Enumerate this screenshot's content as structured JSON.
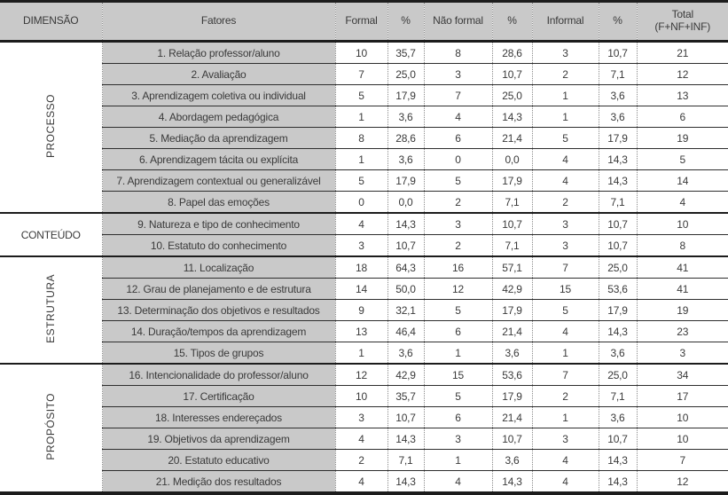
{
  "header": {
    "dimensao": "DIMENSÃO",
    "fatores": "Fatores",
    "formal": "Formal",
    "pct_formal": "%",
    "nao_formal": "Não formal",
    "pct_nao_formal": "%",
    "informal": "Informal",
    "pct_informal": "%",
    "total_line1": "Total",
    "total_line2": "(F+NF+INF)"
  },
  "groups": [
    {
      "dimension": "PROCESSO",
      "orientation": "vertical",
      "rows": [
        {
          "fator": "1. Relação professor/aluno",
          "values": [
            "10",
            "35,7",
            "8",
            "28,6",
            "3",
            "10,7",
            "21"
          ]
        },
        {
          "fator": "2. Avaliação",
          "values": [
            "7",
            "25,0",
            "3",
            "10,7",
            "2",
            "7,1",
            "12"
          ]
        },
        {
          "fator": "3. Aprendizagem coletiva ou individual",
          "values": [
            "5",
            "17,9",
            "7",
            "25,0",
            "1",
            "3,6",
            "13"
          ]
        },
        {
          "fator": "4. Abordagem pedagógica",
          "values": [
            "1",
            "3,6",
            "4",
            "14,3",
            "1",
            "3,6",
            "6"
          ]
        },
        {
          "fator": "5. Mediação da aprendizagem",
          "values": [
            "8",
            "28,6",
            "6",
            "21,4",
            "5",
            "17,9",
            "19"
          ]
        },
        {
          "fator": "6. Aprendizagem tácita ou explícita",
          "values": [
            "1",
            "3,6",
            "0",
            "0,0",
            "4",
            "14,3",
            "5"
          ]
        },
        {
          "fator": "7. Aprendizagem contextual ou generalizável",
          "values": [
            "5",
            "17,9",
            "5",
            "17,9",
            "4",
            "14,3",
            "14"
          ]
        },
        {
          "fator": "8. Papel das emoções",
          "values": [
            "0",
            "0,0",
            "2",
            "7,1",
            "2",
            "7,1",
            "4"
          ]
        }
      ]
    },
    {
      "dimension": "CONTEÚDO",
      "orientation": "horizontal",
      "rows": [
        {
          "fator": "9. Natureza e tipo de conhecimento",
          "values": [
            "4",
            "14,3",
            "3",
            "10,7",
            "3",
            "10,7",
            "10"
          ]
        },
        {
          "fator": "10. Estatuto do conhecimento",
          "values": [
            "3",
            "10,7",
            "2",
            "7,1",
            "3",
            "10,7",
            "8"
          ]
        }
      ]
    },
    {
      "dimension": "ESTRUTURA",
      "orientation": "vertical",
      "rows": [
        {
          "fator": "11. Localização",
          "values": [
            "18",
            "64,3",
            "16",
            "57,1",
            "7",
            "25,0",
            "41"
          ]
        },
        {
          "fator": "12. Grau de planejamento e de estrutura",
          "values": [
            "14",
            "50,0",
            "12",
            "42,9",
            "15",
            "53,6",
            "41"
          ]
        },
        {
          "fator": "13. Determinação dos objetivos e resultados",
          "values": [
            "9",
            "32,1",
            "5",
            "17,9",
            "5",
            "17,9",
            "19"
          ]
        },
        {
          "fator": "14. Duração/tempos da aprendizagem",
          "values": [
            "13",
            "46,4",
            "6",
            "21,4",
            "4",
            "14,3",
            "23"
          ]
        },
        {
          "fator": "15. Tipos de grupos",
          "values": [
            "1",
            "3,6",
            "1",
            "3,6",
            "1",
            "3,6",
            "3"
          ]
        }
      ]
    },
    {
      "dimension": "PROPÓSITO",
      "orientation": "vertical",
      "rows": [
        {
          "fator": "16. Intencionalidade do professor/aluno",
          "values": [
            "12",
            "42,9",
            "15",
            "53,6",
            "7",
            "25,0",
            "34"
          ]
        },
        {
          "fator": "17. Certificação",
          "values": [
            "10",
            "35,7",
            "5",
            "17,9",
            "2",
            "7,1",
            "17"
          ]
        },
        {
          "fator": "18. Interesses endereçados",
          "values": [
            "3",
            "10,7",
            "6",
            "21,4",
            "1",
            "3,6",
            "10"
          ]
        },
        {
          "fator": "19. Objetivos da aprendizagem",
          "values": [
            "4",
            "14,3",
            "3",
            "10,7",
            "3",
            "10,7",
            "10"
          ]
        },
        {
          "fator": "20. Estatuto educativo",
          "values": [
            "2",
            "7,1",
            "1",
            "3,6",
            "4",
            "14,3",
            "7"
          ]
        },
        {
          "fator": "21. Medição dos resultados",
          "values": [
            "4",
            "14,3",
            "4",
            "14,3",
            "4",
            "14,3",
            "12"
          ]
        }
      ]
    }
  ],
  "colors": {
    "header_bg": "#c9c9c9",
    "fatores_bg": "#c9c9c9",
    "line": "#1c1c1c",
    "dotted_line": "#8a8a8a",
    "text": "#3a3a3a"
  }
}
